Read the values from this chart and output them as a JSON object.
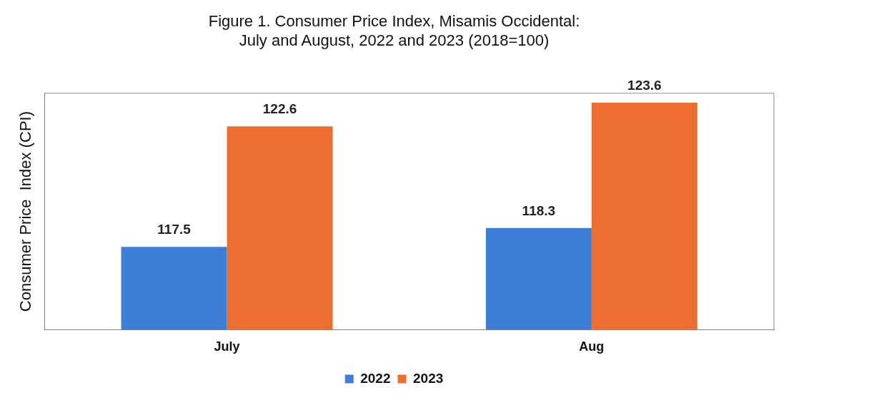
{
  "chart_data": {
    "type": "bar",
    "title": "Figure 1. Consumer Price Index, Misamis Occidental:\nJuly and August, 2022 and 2023 (2018=100)",
    "ylabel": "Consumer Price  Index (CPI)",
    "categories": [
      "July",
      "Aug"
    ],
    "series": [
      {
        "name": "2022",
        "color": "#3d7fd6",
        "values": [
          117.5,
          118.3
        ]
      },
      {
        "name": "2023",
        "color": "#ee6d31",
        "values": [
          122.6,
          123.6
        ]
      }
    ],
    "ylim": [
      114,
      124
    ],
    "data_labels": true,
    "legend": "bottom",
    "grid": false
  }
}
